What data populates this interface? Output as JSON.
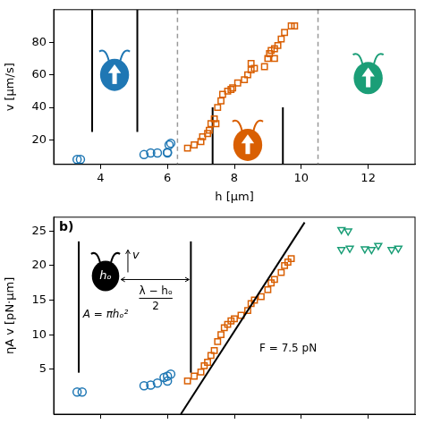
{
  "chart_data": [
    {
      "type": "scatter",
      "x_label": "h [µm]",
      "y_label": "v [µm/s]",
      "xlim": [
        2.6,
        13.4
      ],
      "xticks": [
        4,
        6,
        8,
        10,
        12
      ],
      "ylim": [
        5,
        100
      ],
      "yticks": [
        20,
        40,
        60,
        80
      ],
      "grid": false,
      "vlines": [
        6.3,
        10.5
      ],
      "series": [
        {
          "color": "#1f77b4",
          "marker": "circle",
          "x": [
            3.3,
            3.4,
            5.3,
            5.5,
            5.7,
            6.0,
            6.0,
            6.05,
            6.1
          ],
          "values": [
            8,
            8,
            11,
            12,
            12,
            12,
            12.5,
            17,
            18
          ]
        },
        {
          "color": "#d95f02",
          "marker": "square",
          "x": [
            6.6,
            6.8,
            7.0,
            7.05,
            7.2,
            7.25,
            7.3,
            7.45,
            7.4,
            7.5,
            7.6,
            7.65,
            7.8,
            7.9,
            7.95,
            8.1,
            8.3,
            8.4,
            8.5,
            8.6,
            8.5,
            8.9,
            9.0,
            9.05,
            9.1,
            9.2,
            9.3,
            9.2,
            9.4,
            9.5,
            9.7,
            9.8
          ],
          "values": [
            15,
            17,
            19,
            22,
            24,
            26,
            30,
            30,
            33,
            40,
            44,
            48,
            50,
            51,
            52,
            55,
            57,
            60,
            63,
            64,
            67,
            65,
            70,
            73,
            75,
            76,
            78,
            70,
            82,
            86,
            90,
            90
          ]
        }
      ]
    },
    {
      "type": "scatter",
      "label": "b)",
      "y_label": "ηA v [pN·µm]",
      "xlim": [
        2.6,
        13.4
      ],
      "xticks": [
        4,
        6,
        8,
        10,
        12
      ],
      "ylim": [
        -1.5,
        27
      ],
      "yticks": [
        5,
        10,
        15,
        20,
        25
      ],
      "grid": false,
      "tick_labels": "y",
      "annotations": {
        "slope": "F = 7.5 pN",
        "height": "hₒ",
        "speed": "v",
        "area": "A = πhₒ²",
        "gap": {
          "numerator": "λ − hₒ",
          "denominator": "2"
        }
      },
      "series": [
        {
          "color": "#1f77b4",
          "marker": "circle",
          "x": [
            3.3,
            3.45,
            5.3,
            5.5,
            5.7,
            5.9,
            6.0,
            6.0,
            6.1
          ],
          "values": [
            1.7,
            1.7,
            2.6,
            2.7,
            3.0,
            3.8,
            4.0,
            3.3,
            4.3
          ]
        },
        {
          "color": "#d95f02",
          "marker": "square",
          "x": [
            6.6,
            6.8,
            7.0,
            7.1,
            7.2,
            7.3,
            7.4,
            7.5,
            7.6,
            7.7,
            7.8,
            7.9,
            8.0,
            8.2,
            8.4,
            8.5,
            8.6,
            8.8,
            9.0,
            9.1,
            9.2,
            9.4,
            9.5,
            9.6,
            9.7
          ],
          "values": [
            3.3,
            4,
            4.6,
            5.5,
            6,
            7,
            7.7,
            9,
            10,
            11,
            11.5,
            12,
            12.3,
            12.8,
            13.5,
            14.5,
            15,
            15.5,
            16.5,
            17.5,
            18,
            19,
            20,
            20.5,
            21
          ]
        },
        {
          "color": "#1b9e77",
          "marker": "triangle_down",
          "x": [
            11.2,
            11.4,
            11.2,
            11.45,
            11.9,
            12.1,
            12.3,
            12.7,
            12.9
          ],
          "values": [
            25.2,
            25,
            22.3,
            22.5,
            22.4,
            22.3,
            22.9,
            22.3,
            22.5
          ]
        },
        {
          "type": "line",
          "color": "#000000",
          "line_style": "solid",
          "x": [
            6.4,
            10.1
          ],
          "values": [
            -1.5,
            26.25
          ]
        }
      ]
    }
  ]
}
